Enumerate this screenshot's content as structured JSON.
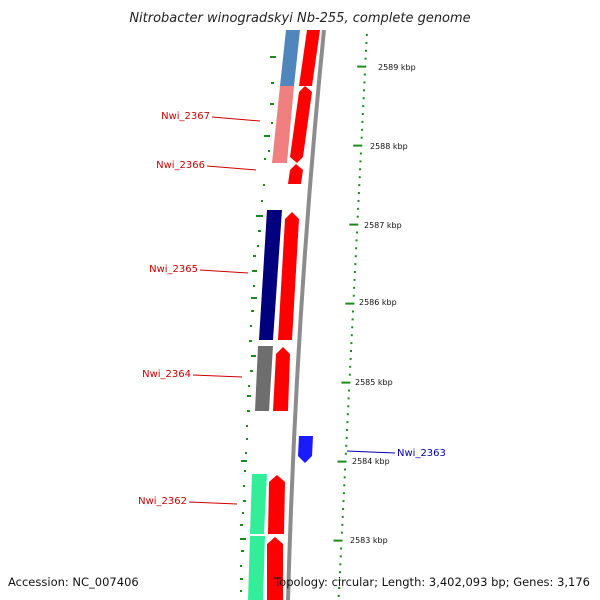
{
  "title": "Nitrobacter winogradskyi Nb-255, complete genome",
  "footer": {
    "accession": "Accession: NC_007406",
    "topology": "Topology: circular; Length: 3,402,093 bp; Genes: 3,176"
  },
  "ticks": [
    {
      "label": "2589 kbp"
    },
    {
      "label": "2588 kbp"
    },
    {
      "label": "2587 kbp"
    },
    {
      "label": "2586 kbp"
    },
    {
      "label": "2585 kbp"
    },
    {
      "label": "2584 kbp"
    },
    {
      "label": "2583 kbp"
    }
  ],
  "gene_labels": [
    {
      "text": "Nwi_2367",
      "color": "#cc0000"
    },
    {
      "text": "Nwi_2366",
      "color": "#cc0000"
    },
    {
      "text": "Nwi_2365",
      "color": "#cc0000"
    },
    {
      "text": "Nwi_2364",
      "color": "#cc0000"
    },
    {
      "text": "Nwi_2363",
      "color": "#0000aa"
    },
    {
      "text": "Nwi_2362",
      "color": "#cc0000"
    }
  ],
  "colors": {
    "backbone": "#8c8c8c",
    "gene_red": "#ff0000",
    "gene_blue": "#1a1aff",
    "cog_steelblue": "#4f86bd",
    "cog_salmon": "#f08080",
    "cog_navy": "#00007f",
    "cog_gray": "#6e6e6e",
    "cog_aqua": "#33ee99",
    "tick_green": "#1d8a1d"
  }
}
